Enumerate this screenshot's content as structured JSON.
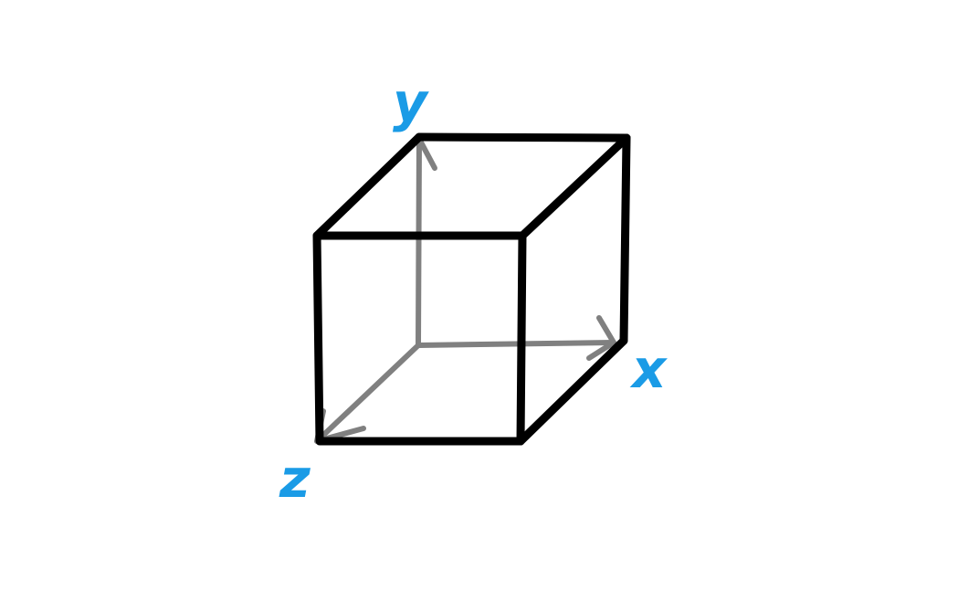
{
  "colors": {
    "cube_edge": "#000000",
    "axis_arrow": "#808080",
    "axis_label": "#1a9be6"
  },
  "labels": {
    "x": "x",
    "y": "y",
    "z": "z"
  }
}
